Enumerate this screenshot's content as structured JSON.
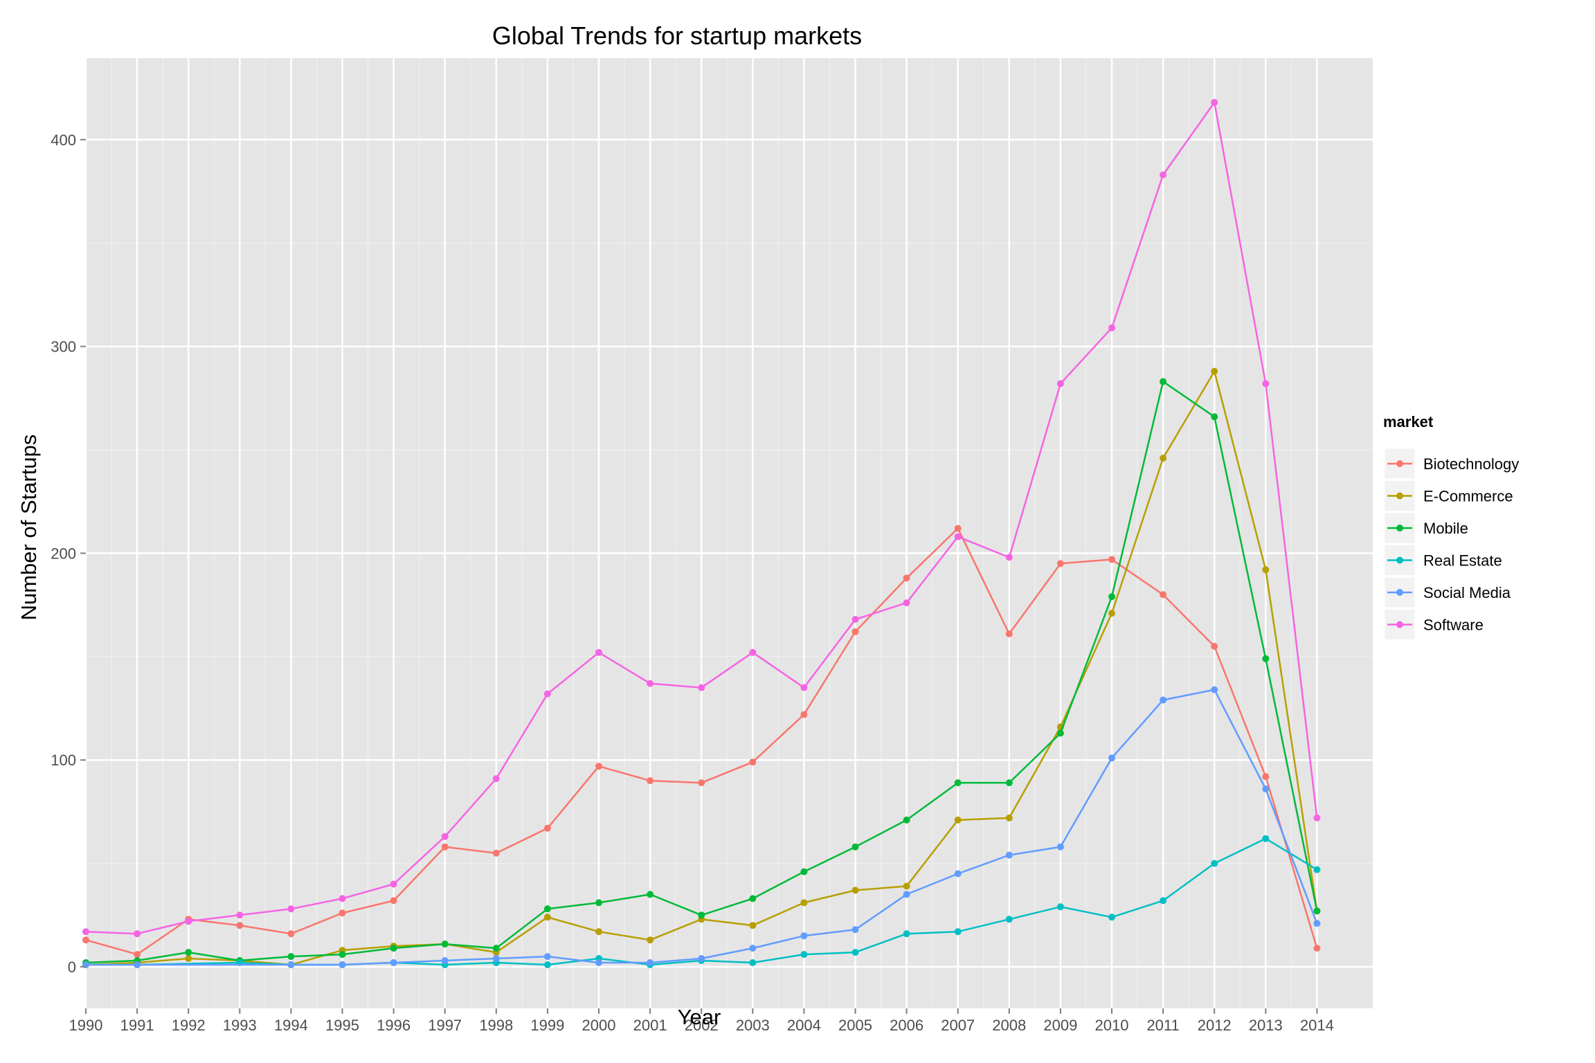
{
  "chart_data": {
    "type": "line",
    "title": "Global Trends for startup markets",
    "xlabel": "Year",
    "ylabel": "Number of Startups",
    "x": [
      1990,
      1991,
      1992,
      1993,
      1994,
      1995,
      1996,
      1997,
      1998,
      1999,
      2000,
      2001,
      2002,
      2003,
      2004,
      2005,
      2006,
      2007,
      2008,
      2009,
      2010,
      2011,
      2012,
      2013,
      2014
    ],
    "xlim": [
      1990,
      2014
    ],
    "ylim": [
      -20,
      440
    ],
    "yticks": [
      0,
      100,
      200,
      300,
      400
    ],
    "grid": true,
    "legend": {
      "title": "market",
      "position": "right"
    },
    "series": [
      {
        "name": "Biotechnology",
        "color": "#F8766D",
        "values": [
          13,
          6,
          23,
          20,
          16,
          26,
          32,
          58,
          55,
          67,
          97,
          90,
          89,
          99,
          122,
          162,
          188,
          212,
          161,
          195,
          197,
          180,
          155,
          92,
          9
        ]
      },
      {
        "name": "E-Commerce",
        "color": "#B79F00",
        "values": [
          1,
          2,
          4,
          3,
          1,
          8,
          10,
          11,
          7,
          24,
          17,
          13,
          23,
          20,
          31,
          37,
          39,
          71,
          72,
          116,
          171,
          246,
          288,
          192,
          27
        ]
      },
      {
        "name": "Mobile",
        "color": "#00BA38",
        "values": [
          2,
          3,
          7,
          3,
          5,
          6,
          9,
          11,
          9,
          28,
          31,
          35,
          25,
          33,
          46,
          58,
          71,
          89,
          89,
          113,
          179,
          283,
          266,
          149,
          27
        ]
      },
      {
        "name": "Real Estate",
        "color": "#00BFC4",
        "values": [
          1,
          1,
          null,
          2,
          1,
          1,
          2,
          1,
          2,
          1,
          4,
          1,
          3,
          2,
          6,
          7,
          16,
          17,
          23,
          29,
          24,
          32,
          50,
          62,
          47
        ]
      },
      {
        "name": "Social Media",
        "color": "#619CFF",
        "values": [
          1,
          1,
          null,
          null,
          1,
          1,
          2,
          3,
          4,
          5,
          2,
          2,
          4,
          9,
          15,
          18,
          35,
          45,
          54,
          58,
          101,
          129,
          134,
          86,
          21
        ]
      },
      {
        "name": "Software",
        "color": "#F564E3",
        "values": [
          17,
          16,
          22,
          25,
          28,
          33,
          40,
          63,
          91,
          132,
          152,
          137,
          135,
          152,
          135,
          168,
          176,
          208,
          198,
          282,
          309,
          383,
          418,
          282,
          72
        ]
      }
    ]
  }
}
